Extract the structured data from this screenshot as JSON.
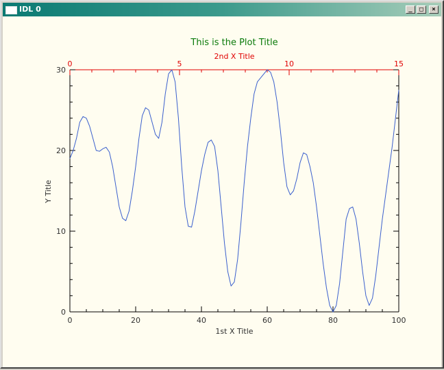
{
  "window": {
    "title": "IDL 0",
    "min_glyph": "_",
    "max_glyph": "□",
    "close_glyph": "×"
  },
  "colors": {
    "title_color": "#0a7a0a",
    "top_axis_color": "#e00000",
    "line_color": "#3a5fcd",
    "axis_color": "#000000"
  },
  "chart_data": {
    "type": "line",
    "title": "This is the Plot Title",
    "xlabel": "1st X Title",
    "ylabel": "Y Title",
    "x2label": "2nd X Title",
    "xlim": [
      0,
      100
    ],
    "ylim": [
      0,
      30
    ],
    "x2lim": [
      0,
      15
    ],
    "x_ticks": [
      "0",
      "20",
      "40",
      "60",
      "80",
      "100"
    ],
    "y_ticks": [
      "0",
      "10",
      "20",
      "30"
    ],
    "x2_ticks": [
      "0",
      "5",
      "10",
      "15"
    ],
    "grid": false,
    "series": [
      {
        "x": [
          0,
          1,
          2,
          3,
          4,
          5,
          6,
          7,
          8,
          9,
          10,
          11,
          12,
          13,
          14,
          15,
          16,
          17,
          18,
          19,
          20,
          21,
          22,
          23,
          24,
          25,
          26,
          27,
          28,
          29,
          30,
          31,
          32,
          33,
          34,
          35,
          36,
          37,
          38,
          39,
          40,
          41,
          42,
          43,
          44,
          45,
          46,
          47,
          48,
          49,
          50,
          51,
          52,
          53,
          54,
          55,
          56,
          57,
          58,
          59,
          60,
          61,
          62,
          63,
          64,
          65,
          66,
          67,
          68,
          69,
          70,
          71,
          72,
          73,
          74,
          75,
          76,
          77,
          78,
          79,
          80,
          81,
          82,
          83,
          84,
          85,
          86,
          87,
          88,
          89,
          90,
          91,
          92,
          93,
          94,
          95,
          96,
          97,
          98,
          99,
          100
        ],
        "y": [
          19,
          20,
          21.5,
          23.5,
          24.2,
          24,
          23,
          21.5,
          20,
          19.9,
          20.2,
          20.4,
          19.8,
          18,
          15.5,
          13,
          11.6,
          11.3,
          12.5,
          15,
          18,
          21.5,
          24.3,
          25.3,
          25,
          23.5,
          22,
          21.5,
          23.5,
          27,
          29.5,
          30,
          28.5,
          24,
          18,
          13,
          10.6,
          10.5,
          12.5,
          15,
          17.5,
          19.5,
          21,
          21.3,
          20.5,
          17.5,
          13,
          8.5,
          5,
          3.2,
          3.7,
          6.5,
          11,
          16,
          20.5,
          24,
          27,
          28.5,
          29,
          29.5,
          30,
          29.7,
          28.5,
          26,
          22.5,
          18.5,
          15.5,
          14.5,
          15,
          16.5,
          18.5,
          19.7,
          19.5,
          18,
          16,
          13,
          9.5,
          6,
          3,
          0.8,
          0,
          0.8,
          3.5,
          7.5,
          11.5,
          12.8,
          13,
          11.5,
          8.5,
          5,
          2,
          0.8,
          1.7,
          4.5,
          8,
          11.5,
          14.5,
          17.5,
          20.5,
          24,
          27.5
        ]
      }
    ]
  }
}
